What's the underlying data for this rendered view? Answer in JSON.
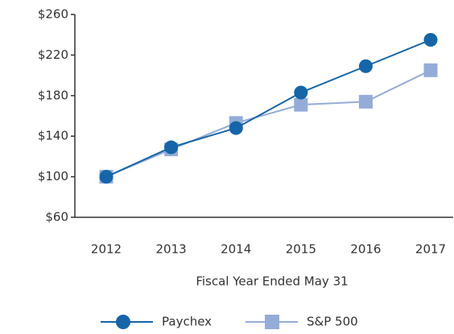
{
  "chart_data": {
    "type": "line",
    "xlabel": "Fiscal Year Ended May 31",
    "categories": [
      "2012",
      "2013",
      "2014",
      "2015",
      "2016",
      "2017"
    ],
    "series": [
      {
        "name": "Paychex",
        "color": "#1565a8",
        "marker": "circle",
        "values": [
          100,
          129,
          148,
          183,
          209,
          235
        ]
      },
      {
        "name": "S&P 500",
        "color": "#94acd8",
        "marker": "square",
        "values": [
          100,
          127,
          153,
          171,
          174,
          205
        ]
      }
    ],
    "ylim": [
      60,
      260
    ],
    "yticks": [
      {
        "value": 60,
        "label": "$60"
      },
      {
        "value": 100,
        "label": "$100"
      },
      {
        "value": 140,
        "label": "$140"
      },
      {
        "value": 180,
        "label": "$180"
      },
      {
        "value": 220,
        "label": "$220"
      },
      {
        "value": 260,
        "label": "$260"
      }
    ],
    "grid": false,
    "legend": "bottom"
  }
}
